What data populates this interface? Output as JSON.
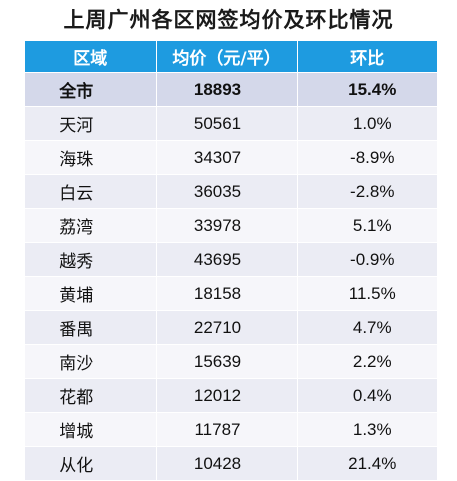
{
  "title": "上周广州各区网签均价及环比情况",
  "headers": [
    "区域",
    "均价（元/平）",
    "环比"
  ],
  "summary": {
    "district": "全市",
    "price": "18893",
    "change": "15.4%"
  },
  "rows": [
    {
      "district": "天河",
      "price": "50561",
      "change": "1.0%"
    },
    {
      "district": "海珠",
      "price": "34307",
      "change": "-8.9%"
    },
    {
      "district": "白云",
      "price": "36035",
      "change": "-2.8%"
    },
    {
      "district": "荔湾",
      "price": "33978",
      "change": "5.1%"
    },
    {
      "district": "越秀",
      "price": "43695",
      "change": "-0.9%"
    },
    {
      "district": "黄埔",
      "price": "18158",
      "change": "11.5%"
    },
    {
      "district": "番禺",
      "price": "22710",
      "change": "4.7%"
    },
    {
      "district": "南沙",
      "price": "15639",
      "change": "2.2%"
    },
    {
      "district": "花都",
      "price": "12012",
      "change": "0.4%"
    },
    {
      "district": "增城",
      "price": "11787",
      "change": "1.3%"
    },
    {
      "district": "从化",
      "price": "10428",
      "change": "21.4%"
    }
  ],
  "colors": {
    "header_bg": "#1e9be0",
    "summary_bg": "#d4d8ea",
    "row_odd": "#ebecf4",
    "row_even": "#f6f6fa"
  }
}
